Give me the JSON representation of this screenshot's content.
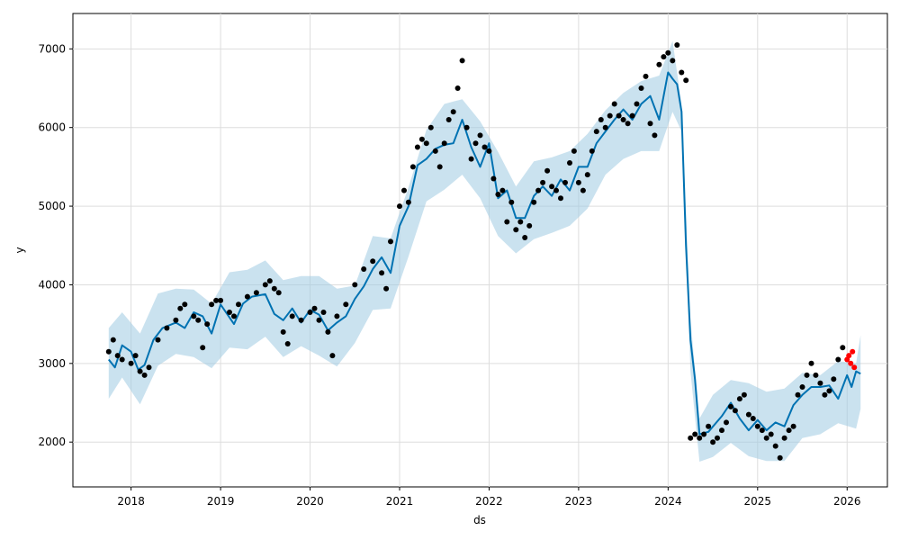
{
  "chart_data": {
    "type": "line",
    "title": "",
    "xlabel": "ds",
    "ylabel": "y",
    "xlim": [
      2017.35,
      2026.45
    ],
    "ylim": [
      1430,
      7450
    ],
    "x_ticks": [
      {
        "value": 2018,
        "label": "2018"
      },
      {
        "value": 2019,
        "label": "2019"
      },
      {
        "value": 2020,
        "label": "2020"
      },
      {
        "value": 2021,
        "label": "2021"
      },
      {
        "value": 2022,
        "label": "2022"
      },
      {
        "value": 2023,
        "label": "2023"
      },
      {
        "value": 2024,
        "label": "2024"
      },
      {
        "value": 2025,
        "label": "2025"
      },
      {
        "value": 2026,
        "label": "2026"
      }
    ],
    "y_ticks": [
      {
        "value": 2000,
        "label": "2000"
      },
      {
        "value": 3000,
        "label": "3000"
      },
      {
        "value": 4000,
        "label": "4000"
      },
      {
        "value": 5000,
        "label": "5000"
      },
      {
        "value": 6000,
        "label": "6000"
      },
      {
        "value": 7000,
        "label": "7000"
      }
    ],
    "grid": true,
    "colors": {
      "forecast_line": "#0072B2",
      "interval_fill": "#9ecae1",
      "observed_points": "#000000",
      "highlighted_points": "#ff0000"
    },
    "series": [
      {
        "role": "forecast",
        "x": [
          2017.75,
          2017.82,
          2017.9,
          2018.0,
          2018.08,
          2018.15,
          2018.25,
          2018.35,
          2018.5,
          2018.6,
          2018.7,
          2018.8,
          2018.9,
          2019.0,
          2019.15,
          2019.25,
          2019.35,
          2019.5,
          2019.6,
          2019.7,
          2019.8,
          2019.9,
          2020.0,
          2020.1,
          2020.2,
          2020.3,
          2020.4,
          2020.5,
          2020.6,
          2020.7,
          2020.8,
          2020.9,
          2021.0,
          2021.1,
          2021.2,
          2021.3,
          2021.4,
          2021.5,
          2021.6,
          2021.7,
          2021.8,
          2021.9,
          2022.0,
          2022.1,
          2022.2,
          2022.3,
          2022.4,
          2022.5,
          2022.6,
          2022.7,
          2022.8,
          2022.9,
          2023.0,
          2023.1,
          2023.2,
          2023.3,
          2023.4,
          2023.5,
          2023.6,
          2023.7,
          2023.8,
          2023.9,
          2024.0,
          2024.05,
          2024.1,
          2024.15,
          2024.2,
          2024.25,
          2024.3,
          2024.35,
          2024.45,
          2024.6,
          2024.7,
          2024.8,
          2024.9,
          2025.0,
          2025.1,
          2025.2,
          2025.3,
          2025.4,
          2025.5,
          2025.6,
          2025.7,
          2025.8,
          2025.9,
          2026.0,
          2026.05,
          2026.1,
          2026.15
        ],
        "y": [
          3050,
          2950,
          3230,
          3150,
          2920,
          2980,
          3300,
          3450,
          3520,
          3450,
          3650,
          3600,
          3380,
          3750,
          3500,
          3760,
          3850,
          3880,
          3630,
          3550,
          3700,
          3520,
          3680,
          3620,
          3420,
          3520,
          3600,
          3820,
          3980,
          4200,
          4350,
          4150,
          4750,
          5000,
          5520,
          5600,
          5730,
          5780,
          5800,
          6100,
          5750,
          5500,
          5800,
          5100,
          5200,
          4850,
          4850,
          5130,
          5250,
          5130,
          5340,
          5200,
          5500,
          5500,
          5800,
          5950,
          6100,
          6230,
          6100,
          6300,
          6400,
          6100,
          6700,
          6620,
          6550,
          6200,
          4500,
          3300,
          2800,
          2100,
          2130,
          2330,
          2500,
          2300,
          2150,
          2280,
          2150,
          2250,
          2200,
          2470,
          2600,
          2700,
          2700,
          2720,
          2550,
          2850,
          2700,
          2900,
          2870
        ]
      },
      {
        "role": "uncertainty_band",
        "x": [
          2017.75,
          2017.9,
          2018.1,
          2018.3,
          2018.5,
          2018.7,
          2018.9,
          2019.1,
          2019.3,
          2019.5,
          2019.7,
          2019.9,
          2020.1,
          2020.3,
          2020.5,
          2020.7,
          2020.9,
          2021.1,
          2021.3,
          2021.5,
          2021.7,
          2021.9,
          2022.1,
          2022.3,
          2022.5,
          2022.7,
          2022.9,
          2023.1,
          2023.3,
          2023.5,
          2023.7,
          2023.9,
          2024.05,
          2024.15,
          2024.25,
          2024.35,
          2024.5,
          2024.7,
          2024.9,
          2025.1,
          2025.3,
          2025.5,
          2025.7,
          2025.9,
          2026.1,
          2026.15
        ],
        "lower": [
          2550,
          2820,
          2480,
          2970,
          3120,
          3080,
          2940,
          3200,
          3180,
          3340,
          3080,
          3220,
          3100,
          2960,
          3260,
          3680,
          3700,
          4360,
          5060,
          5210,
          5400,
          5100,
          4620,
          4400,
          4580,
          4660,
          4750,
          4970,
          5400,
          5600,
          5700,
          5700,
          6200,
          5950,
          2900,
          1750,
          1810,
          1990,
          1820,
          1760,
          1760,
          2050,
          2100,
          2240,
          2170,
          2420
        ],
        "upper": [
          3450,
          3650,
          3380,
          3890,
          3950,
          3940,
          3760,
          4160,
          4190,
          4310,
          4060,
          4110,
          4110,
          3950,
          3990,
          4620,
          4590,
          5240,
          5970,
          6300,
          6360,
          6080,
          5690,
          5250,
          5570,
          5620,
          5700,
          5920,
          6220,
          6440,
          6590,
          6660,
          7100,
          6300,
          3560,
          2300,
          2600,
          2790,
          2750,
          2640,
          2680,
          2880,
          2850,
          3030,
          3000,
          3360
        ]
      },
      {
        "role": "observed",
        "x": [
          2017.75,
          2017.8,
          2017.85,
          2017.9,
          2018.0,
          2018.05,
          2018.1,
          2018.15,
          2018.2,
          2018.3,
          2018.4,
          2018.5,
          2018.55,
          2018.6,
          2018.7,
          2018.75,
          2018.8,
          2018.85,
          2018.9,
          2018.95,
          2019.0,
          2019.1,
          2019.15,
          2019.2,
          2019.3,
          2019.4,
          2019.5,
          2019.55,
          2019.6,
          2019.65,
          2019.7,
          2019.75,
          2019.8,
          2019.9,
          2020.0,
          2020.05,
          2020.1,
          2020.15,
          2020.2,
          2020.25,
          2020.3,
          2020.4,
          2020.5,
          2020.6,
          2020.7,
          2020.8,
          2020.85,
          2020.9,
          2021.0,
          2021.05,
          2021.1,
          2021.15,
          2021.2,
          2021.25,
          2021.3,
          2021.35,
          2021.4,
          2021.45,
          2021.5,
          2021.55,
          2021.6,
          2021.65,
          2021.7,
          2021.75,
          2021.8,
          2021.85,
          2021.9,
          2021.95,
          2022.0,
          2022.05,
          2022.1,
          2022.15,
          2022.2,
          2022.25,
          2022.3,
          2022.35,
          2022.4,
          2022.45,
          2022.5,
          2022.55,
          2022.6,
          2022.65,
          2022.7,
          2022.75,
          2022.8,
          2022.85,
          2022.9,
          2022.95,
          2023.0,
          2023.05,
          2023.1,
          2023.15,
          2023.2,
          2023.25,
          2023.3,
          2023.35,
          2023.4,
          2023.45,
          2023.5,
          2023.55,
          2023.6,
          2023.65,
          2023.7,
          2023.75,
          2023.8,
          2023.85,
          2023.9,
          2023.95,
          2024.0,
          2024.05,
          2024.1,
          2024.15,
          2024.2,
          2024.25,
          2024.3,
          2024.35,
          2024.4,
          2024.45,
          2024.5,
          2024.55,
          2024.6,
          2024.65,
          2024.7,
          2024.75,
          2024.8,
          2024.85,
          2024.9,
          2024.95,
          2025.0,
          2025.05,
          2025.1,
          2025.15,
          2025.2,
          2025.25,
          2025.3,
          2025.35,
          2025.4,
          2025.45,
          2025.5,
          2025.55,
          2025.6,
          2025.65,
          2025.7,
          2025.75,
          2025.8,
          2025.85,
          2025.9,
          2025.95
        ],
        "y": [
          3150,
          3300,
          3100,
          3050,
          3000,
          3100,
          2900,
          2850,
          2950,
          3300,
          3450,
          3550,
          3700,
          3750,
          3600,
          3550,
          3200,
          3500,
          3750,
          3800,
          3800,
          3650,
          3600,
          3750,
          3850,
          3900,
          4000,
          4050,
          3950,
          3900,
          3400,
          3250,
          3600,
          3550,
          3650,
          3700,
          3550,
          3650,
          3400,
          3100,
          3600,
          3750,
          4000,
          4200,
          4300,
          4150,
          3950,
          4550,
          5000,
          5200,
          5050,
          5500,
          5750,
          5850,
          5800,
          6000,
          5700,
          5500,
          5800,
          6100,
          6200,
          6500,
          6850,
          6000,
          5600,
          5800,
          5900,
          5750,
          5700,
          5350,
          5150,
          5200,
          4800,
          5050,
          4700,
          4800,
          4600,
          4750,
          5050,
          5200,
          5300,
          5450,
          5250,
          5200,
          5100,
          5300,
          5550,
          5700,
          5300,
          5200,
          5400,
          5700,
          5950,
          6100,
          6000,
          6150,
          6300,
          6150,
          6100,
          6050,
          6150,
          6300,
          6500,
          6650,
          6050,
          5900,
          6800,
          6900,
          6950,
          6850,
          7050,
          6700,
          6600,
          2050,
          2100,
          2050,
          2100,
          2200,
          2000,
          2050,
          2150,
          2250,
          2450,
          2400,
          2550,
          2600,
          2350,
          2300,
          2200,
          2150,
          2050,
          2100,
          1950,
          1800,
          2050,
          2150,
          2200,
          2600,
          2700,
          2850,
          3000,
          2850,
          2750,
          2600,
          2650,
          2800,
          3050,
          3200
        ]
      },
      {
        "role": "highlighted",
        "x": [
          2026.0,
          2026.02,
          2026.04,
          2026.06,
          2026.08
        ],
        "y": [
          3050,
          3100,
          3000,
          3150,
          2950
        ]
      }
    ]
  }
}
